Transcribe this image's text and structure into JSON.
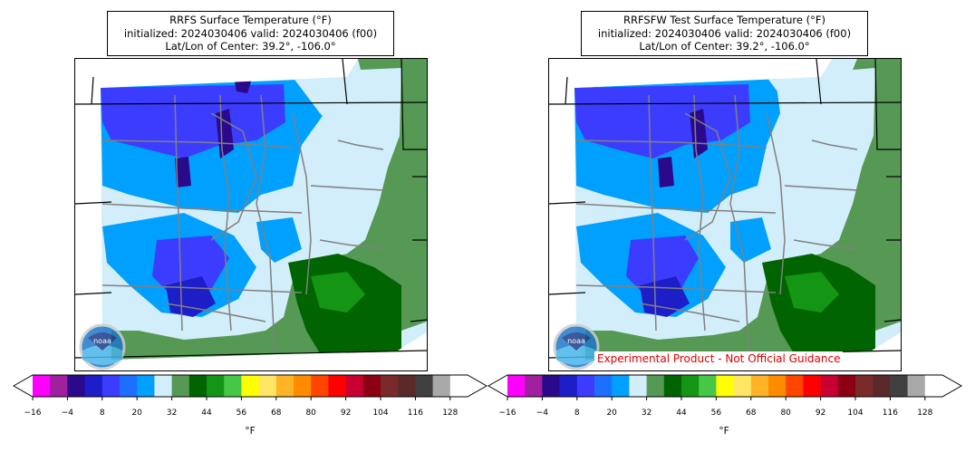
{
  "panels": [
    {
      "title_line1": "RRFS Surface Temperature (°F)",
      "title_line2": "initialized: 2024030406 valid: 2024030406 (f00)",
      "title_line3": "Lat/Lon of Center: 39.2°, -106.0°",
      "logo_text": "noaa",
      "disclaimer": ""
    },
    {
      "title_line1": "RRFSFW Test Surface Temperature (°F)",
      "title_line2": "initialized: 2024030406 valid: 2024030406 (f00)",
      "title_line3": "Lat/Lon of Center: 39.2°, -106.0°",
      "logo_text": "noaa",
      "disclaimer": "Experimental Product - Not Official Guidance"
    }
  ],
  "colorbar": {
    "unit": "°F",
    "ticks": [
      "−16",
      "−4",
      "8",
      "20",
      "32",
      "44",
      "56",
      "68",
      "80",
      "92",
      "104",
      "116",
      "128"
    ],
    "colors": [
      "#ff00ff",
      "#a020a0",
      "#2a0a8a",
      "#1e1ec8",
      "#3c3cff",
      "#1e6eff",
      "#00a0ff",
      "#d2eefa",
      "#559955",
      "#006400",
      "#149614",
      "#46c846",
      "#ffff00",
      "#ffe664",
      "#ffb428",
      "#ff8c00",
      "#ff4600",
      "#ff0000",
      "#c80032",
      "#8c0014",
      "#7a2a2a",
      "#5a2a2a",
      "#404040",
      "#a8a8a8",
      "#ffffff"
    ]
  },
  "map_colors": {
    "very_cold": "#2a0a8a",
    "cold": "#3c3cff",
    "cool": "#00a0ff",
    "near_freezing": "#d2eefa",
    "mild": "#559955",
    "warm": "#006400",
    "borders": "#808080",
    "state_lines": "#000000"
  }
}
